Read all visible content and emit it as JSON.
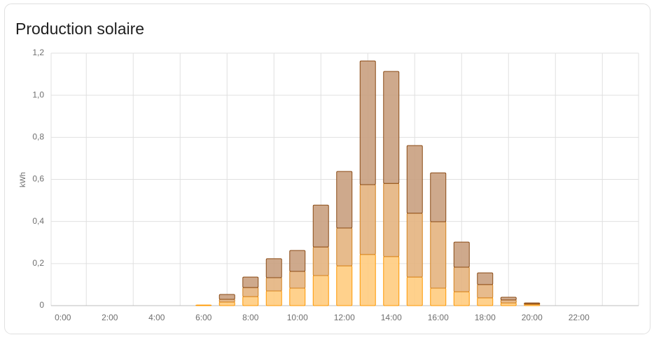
{
  "chart_data": {
    "type": "stacked_bar",
    "title": "Production solaire",
    "y_label": "kWh",
    "categories": [
      "0:00",
      null,
      "2:00",
      null,
      "4:00",
      null,
      "6:00",
      null,
      "8:00",
      null,
      "10:00",
      null,
      "12:00",
      null,
      "14:00",
      null,
      "16:00",
      null,
      "18:00",
      null,
      "20:00",
      null,
      "22:00",
      null
    ],
    "series": [
      {
        "color": "#ffcc80",
        "stroke": "#ff9800",
        "values": [
          0,
          0,
          0,
          0,
          0,
          0,
          0.003,
          0.017,
          0.043,
          0.07,
          0.083,
          0.143,
          0.189,
          0.243,
          0.233,
          0.136,
          0.083,
          0.066,
          0.037,
          0.013,
          0.005,
          0,
          0,
          0
        ]
      },
      {
        "color": "#e4b47f",
        "stroke": "#d4821e",
        "values": [
          0,
          0,
          0,
          0,
          0,
          0,
          0,
          0.013,
          0.043,
          0.063,
          0.08,
          0.136,
          0.18,
          0.332,
          0.348,
          0.303,
          0.316,
          0.117,
          0.063,
          0.014,
          0.004,
          0,
          0,
          0
        ]
      },
      {
        "color": "#c9a07f",
        "stroke": "#8a4a14",
        "values": [
          0,
          0,
          0,
          0,
          0,
          0,
          0,
          0.023,
          0.05,
          0.09,
          0.099,
          0.199,
          0.269,
          0.588,
          0.532,
          0.322,
          0.232,
          0.119,
          0.056,
          0.013,
          0.004,
          0,
          0,
          0
        ]
      }
    ],
    "ylim": [
      0,
      1.2
    ],
    "yticks": [
      0,
      {
        "value": 0.2,
        "label": "0,2"
      },
      {
        "value": 0.4,
        "label": "0,4"
      },
      {
        "value": 0.6,
        "label": "0,6"
      },
      {
        "value": 0.8,
        "label": "0,8"
      },
      {
        "value": 1.0,
        "label": "1,0"
      },
      {
        "value": 1.2,
        "label": "1,2"
      }
    ],
    "grid": true
  }
}
